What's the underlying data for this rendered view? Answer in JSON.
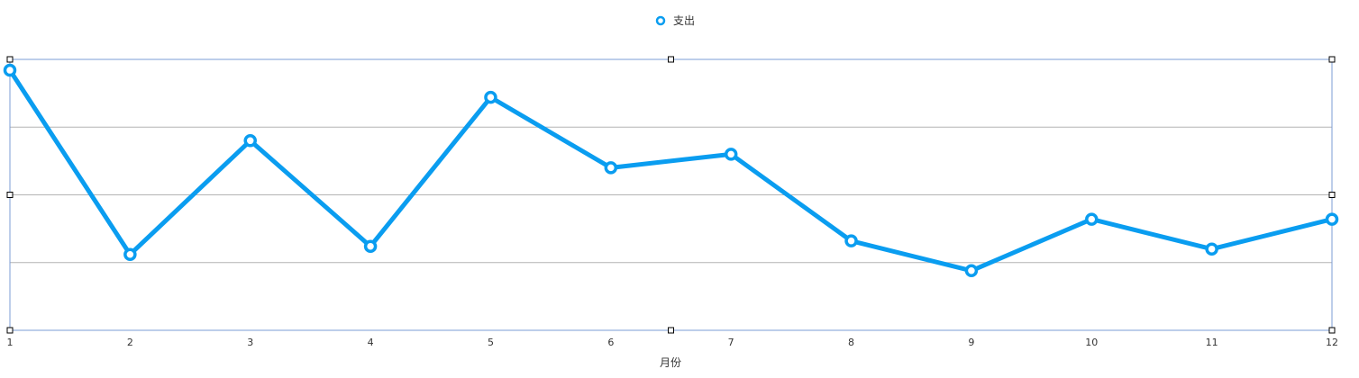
{
  "chart_data": {
    "type": "line",
    "title": "",
    "xlabel": "月份",
    "ylabel": "",
    "x": [
      "1",
      "2",
      "3",
      "4",
      "5",
      "6",
      "7",
      "8",
      "9",
      "10",
      "11",
      "12"
    ],
    "series": [
      {
        "name": "支出",
        "values": [
          96,
          28,
          70,
          31,
          86,
          60,
          65,
          33,
          22,
          41,
          30,
          41
        ]
      }
    ],
    "ylim": [
      0,
      100
    ],
    "grid": true,
    "legend": "top-center",
    "colors": {
      "series": "#0A9DF0",
      "grid": "#B4B4B4",
      "selection": "#7B9CD6"
    }
  }
}
